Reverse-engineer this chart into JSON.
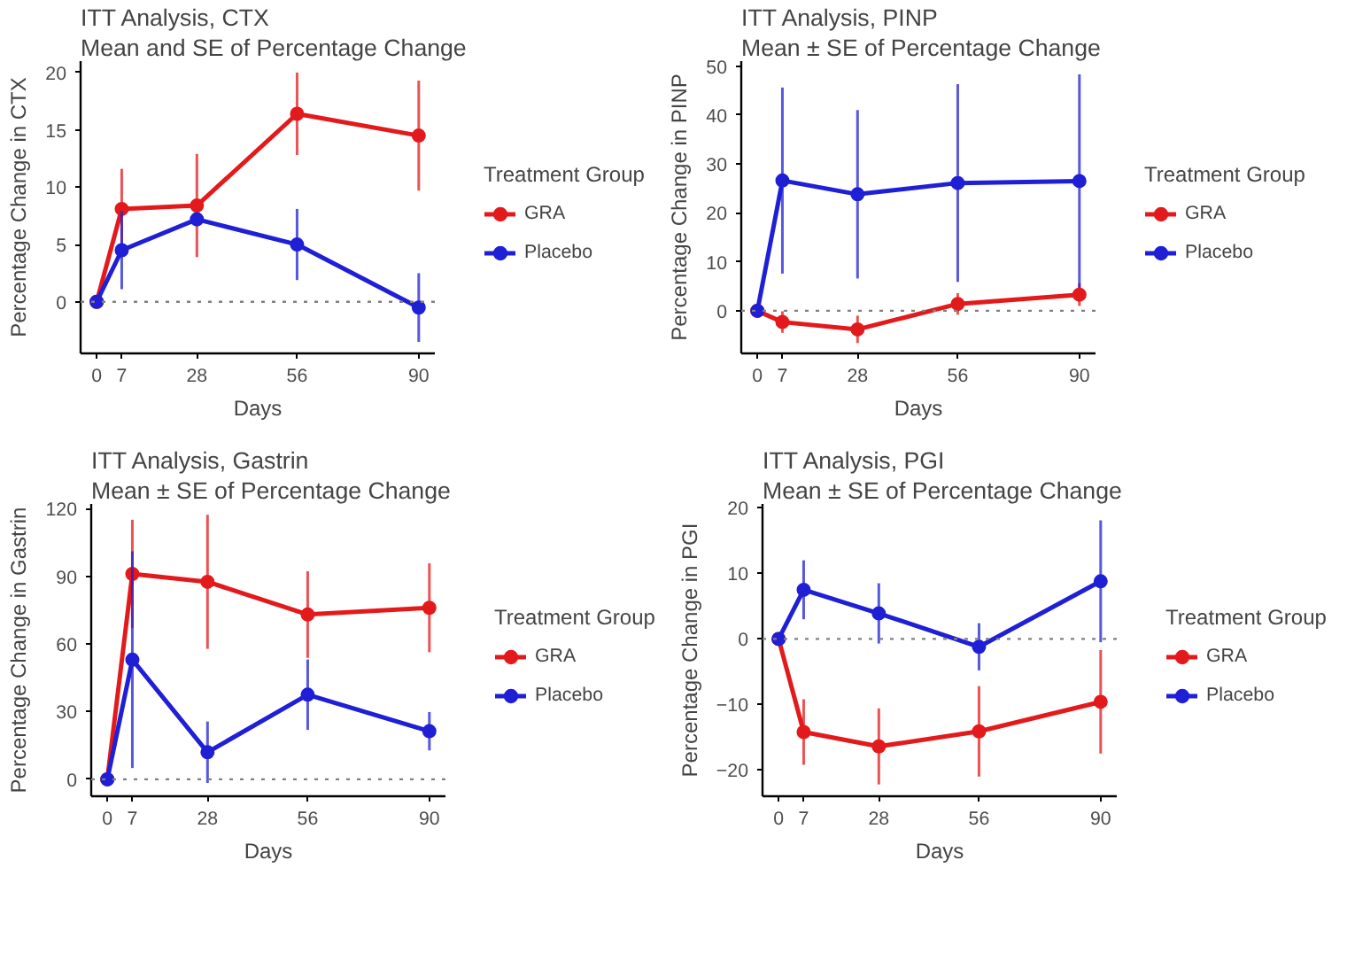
{
  "chart_data": [
    {
      "type": "line",
      "title": "ITT Analysis, CTX",
      "subtitle": "Mean and SE of Percentage Change",
      "xlabel": "Days",
      "ylabel": "Percentage Change in CTX",
      "legend_title": "Treatment Group",
      "legend": "right",
      "marker": "circle",
      "x": [
        0,
        7,
        28,
        56,
        90
      ],
      "xlim": [
        -4.5,
        94.5
      ],
      "xticks": [
        0,
        7,
        28,
        56,
        90
      ],
      "ylim": [
        -4.5,
        21
      ],
      "yticks": [
        0,
        5,
        10,
        15,
        20
      ],
      "ref_lines": [
        {
          "axis": "y",
          "value": 0,
          "color": "#808080",
          "line_style": "dotted"
        }
      ],
      "series": [
        {
          "name": "GRA",
          "color": "#e31a1c",
          "values": [
            0,
            8.1,
            8.4,
            16.4,
            14.5
          ],
          "errors": [
            null,
            3.5,
            4.5,
            3.6,
            4.8
          ]
        },
        {
          "name": "Placebo",
          "color": "#1f1fd6",
          "values": [
            0,
            4.5,
            7.2,
            5.0,
            -0.5
          ],
          "errors": [
            null,
            3.4,
            null,
            3.1,
            3.0
          ]
        }
      ]
    },
    {
      "type": "line",
      "title": "ITT Analysis, PINP",
      "subtitle": "Mean ± SE of Percentage Change",
      "xlabel": "Days",
      "ylabel": "Percentage Change in PINP",
      "legend_title": "Treatment Group",
      "legend": "right",
      "marker": "circle",
      "x": [
        0,
        7,
        28,
        56,
        90
      ],
      "xlim": [
        -4.5,
        94.5
      ],
      "xticks": [
        0,
        7,
        28,
        56,
        90
      ],
      "ylim": [
        -8.7,
        51
      ],
      "yticks": [
        0,
        10,
        20,
        30,
        40,
        50
      ],
      "ref_lines": [
        {
          "axis": "y",
          "value": 0,
          "color": "#808080",
          "line_style": "dotted"
        }
      ],
      "series": [
        {
          "name": "GRA",
          "color": "#e31a1c",
          "values": [
            0,
            -2.3,
            -3.8,
            1.4,
            3.3
          ],
          "errors": [
            null,
            2.2,
            2.8,
            2.2,
            2.3
          ]
        },
        {
          "name": "Placebo",
          "color": "#1f1fd6",
          "values": [
            0,
            26.6,
            23.8,
            26.1,
            26.5
          ],
          "errors": [
            null,
            19,
            17.2,
            20.2,
            21.8
          ]
        }
      ]
    },
    {
      "type": "line",
      "title": "ITT Analysis, Gastrin",
      "subtitle": "Mean ± SE of Percentage Change",
      "xlabel": "Days",
      "ylabel": "Percentage Change in Gastrin",
      "legend_title": "Treatment Group",
      "legend": "right",
      "marker": "circle",
      "x": [
        0,
        7,
        28,
        56,
        90
      ],
      "xlim": [
        -4.5,
        94.5
      ],
      "xticks": [
        0,
        7,
        28,
        56,
        90
      ],
      "ylim": [
        -7.5,
        122
      ],
      "yticks": [
        0,
        30,
        60,
        90,
        120
      ],
      "ref_lines": [
        {
          "axis": "y",
          "value": 0,
          "color": "#808080",
          "line_style": "dotted"
        }
      ],
      "series": [
        {
          "name": "GRA",
          "color": "#e31a1c",
          "values": [
            0,
            91,
            87.5,
            73,
            76
          ],
          "errors": [
            null,
            24,
            29.7,
            19.2,
            19.7
          ]
        },
        {
          "name": "Placebo",
          "color": "#1f1fd6",
          "values": [
            0,
            53,
            12,
            37.5,
            21.3
          ],
          "errors": [
            null,
            48,
            13.6,
            15.6,
            8.5
          ]
        }
      ]
    },
    {
      "type": "line",
      "title": "ITT Analysis, PGI",
      "subtitle": "Mean ± SE of Percentage Change",
      "xlabel": "Days",
      "ylabel": "Percentage Change in PGI",
      "legend_title": "Treatment Group",
      "legend": "right",
      "marker": "circle",
      "x": [
        0,
        7,
        28,
        56,
        90
      ],
      "xlim": [
        -4.5,
        94.5
      ],
      "xticks": [
        0,
        7,
        28,
        56,
        90
      ],
      "ylim": [
        -24,
        20.6
      ],
      "yticks": [
        -20,
        -10,
        0,
        10,
        20
      ],
      "ref_lines": [
        {
          "axis": "y",
          "value": 0,
          "color": "#808080",
          "line_style": "dotted"
        }
      ],
      "series": [
        {
          "name": "GRA",
          "color": "#e31a1c",
          "values": [
            0,
            -14.2,
            -16.4,
            -14.1,
            -9.6
          ],
          "errors": [
            null,
            5,
            5.8,
            6.9,
            7.9
          ]
        },
        {
          "name": "Placebo",
          "color": "#1f1fd6",
          "values": [
            0,
            7.5,
            3.9,
            -1.2,
            8.8
          ],
          "errors": [
            null,
            4.5,
            4.6,
            3.6,
            9.3
          ]
        }
      ]
    }
  ]
}
